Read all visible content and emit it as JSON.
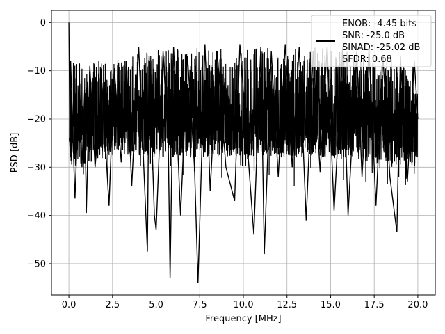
{
  "chart_data": {
    "type": "line",
    "title": "",
    "xlabel": "Frequency [MHz]",
    "ylabel": "PSD [dB]",
    "xlim": [
      -1.0,
      21.0
    ],
    "ylim": [
      -56.5,
      2.5
    ],
    "xticks": [
      0.0,
      2.5,
      5.0,
      7.5,
      10.0,
      12.5,
      15.0,
      17.5,
      20.0
    ],
    "xtick_labels": [
      "0.0",
      "2.5",
      "5.0",
      "7.5",
      "10.0",
      "12.5",
      "15.0",
      "17.5",
      "20.0"
    ],
    "yticks": [
      0,
      -10,
      -20,
      -30,
      -40,
      -50
    ],
    "ytick_labels": [
      "0",
      "−10",
      "−20",
      "−30",
      "−40",
      "−50"
    ],
    "grid": true,
    "legend_placement": "top-right",
    "legend": {
      "entries": [
        "ENOB: -4.45 bits",
        "SNR: -25.0 dB",
        "SINAD: -25.02 dB",
        "SFDR: 0.68"
      ]
    },
    "series": [
      {
        "color": "#000000",
        "x": [
          0.0,
          0.05,
          0.1,
          0.2,
          0.35,
          0.6,
          0.75,
          0.9,
          1.0,
          1.2,
          1.5,
          1.9,
          2.3,
          2.6,
          3.0,
          3.3,
          3.6,
          4.0,
          4.5,
          4.6,
          4.9,
          5.0,
          5.4,
          5.7,
          5.8,
          6.0,
          6.4,
          6.8,
          7.2,
          7.4,
          7.8,
          8.1,
          8.5,
          9.0,
          9.5,
          9.8,
          10.3,
          10.6,
          11.0,
          11.2,
          11.6,
          12.0,
          12.4,
          12.8,
          13.2,
          13.6,
          14.0,
          14.4,
          14.8,
          15.2,
          15.7,
          16.0,
          16.5,
          16.8,
          17.2,
          17.6,
          18.0,
          18.4,
          18.8,
          19.0,
          19.4,
          19.8,
          20.0
        ],
        "y": [
          0.0,
          -22.0,
          -8.0,
          -20.0,
          -36.5,
          -11.0,
          -30.0,
          -14.0,
          -39.5,
          -9.0,
          -30.0,
          -13.0,
          -38.0,
          -9.5,
          -29.0,
          -8.0,
          -34.0,
          -5.0,
          -47.5,
          -7.0,
          -40.0,
          -43.0,
          -6.0,
          -26.0,
          -53.0,
          -5.0,
          -40.0,
          -7.0,
          -30.0,
          -54.0,
          -4.5,
          -35.0,
          -6.0,
          -30.0,
          -37.0,
          -4.5,
          -29.0,
          -44.0,
          -5.0,
          -48.0,
          -6.0,
          -32.0,
          -4.5,
          -30.0,
          -5.0,
          -41.0,
          -6.0,
          -31.0,
          -5.0,
          -39.0,
          -5.0,
          -40.0,
          -6.0,
          -32.0,
          -5.5,
          -38.0,
          -7.0,
          -32.0,
          -43.5,
          -7.0,
          -33.0,
          -8.0,
          -20.0
        ]
      }
    ],
    "noise_band": {
      "description_points_x": [
        0.0,
        2.5,
        5.0,
        7.5,
        10.0,
        12.5,
        15.0,
        17.5,
        20.0
      ],
      "upper_db": [
        -8.0,
        -7.0,
        -5.5,
        -5.0,
        -5.0,
        -5.0,
        -5.0,
        -6.0,
        -9.0
      ],
      "lower_db": [
        -30.0,
        -28.0,
        -28.0,
        -28.0,
        -28.0,
        -28.0,
        -28.0,
        -29.0,
        -30.0
      ]
    }
  }
}
